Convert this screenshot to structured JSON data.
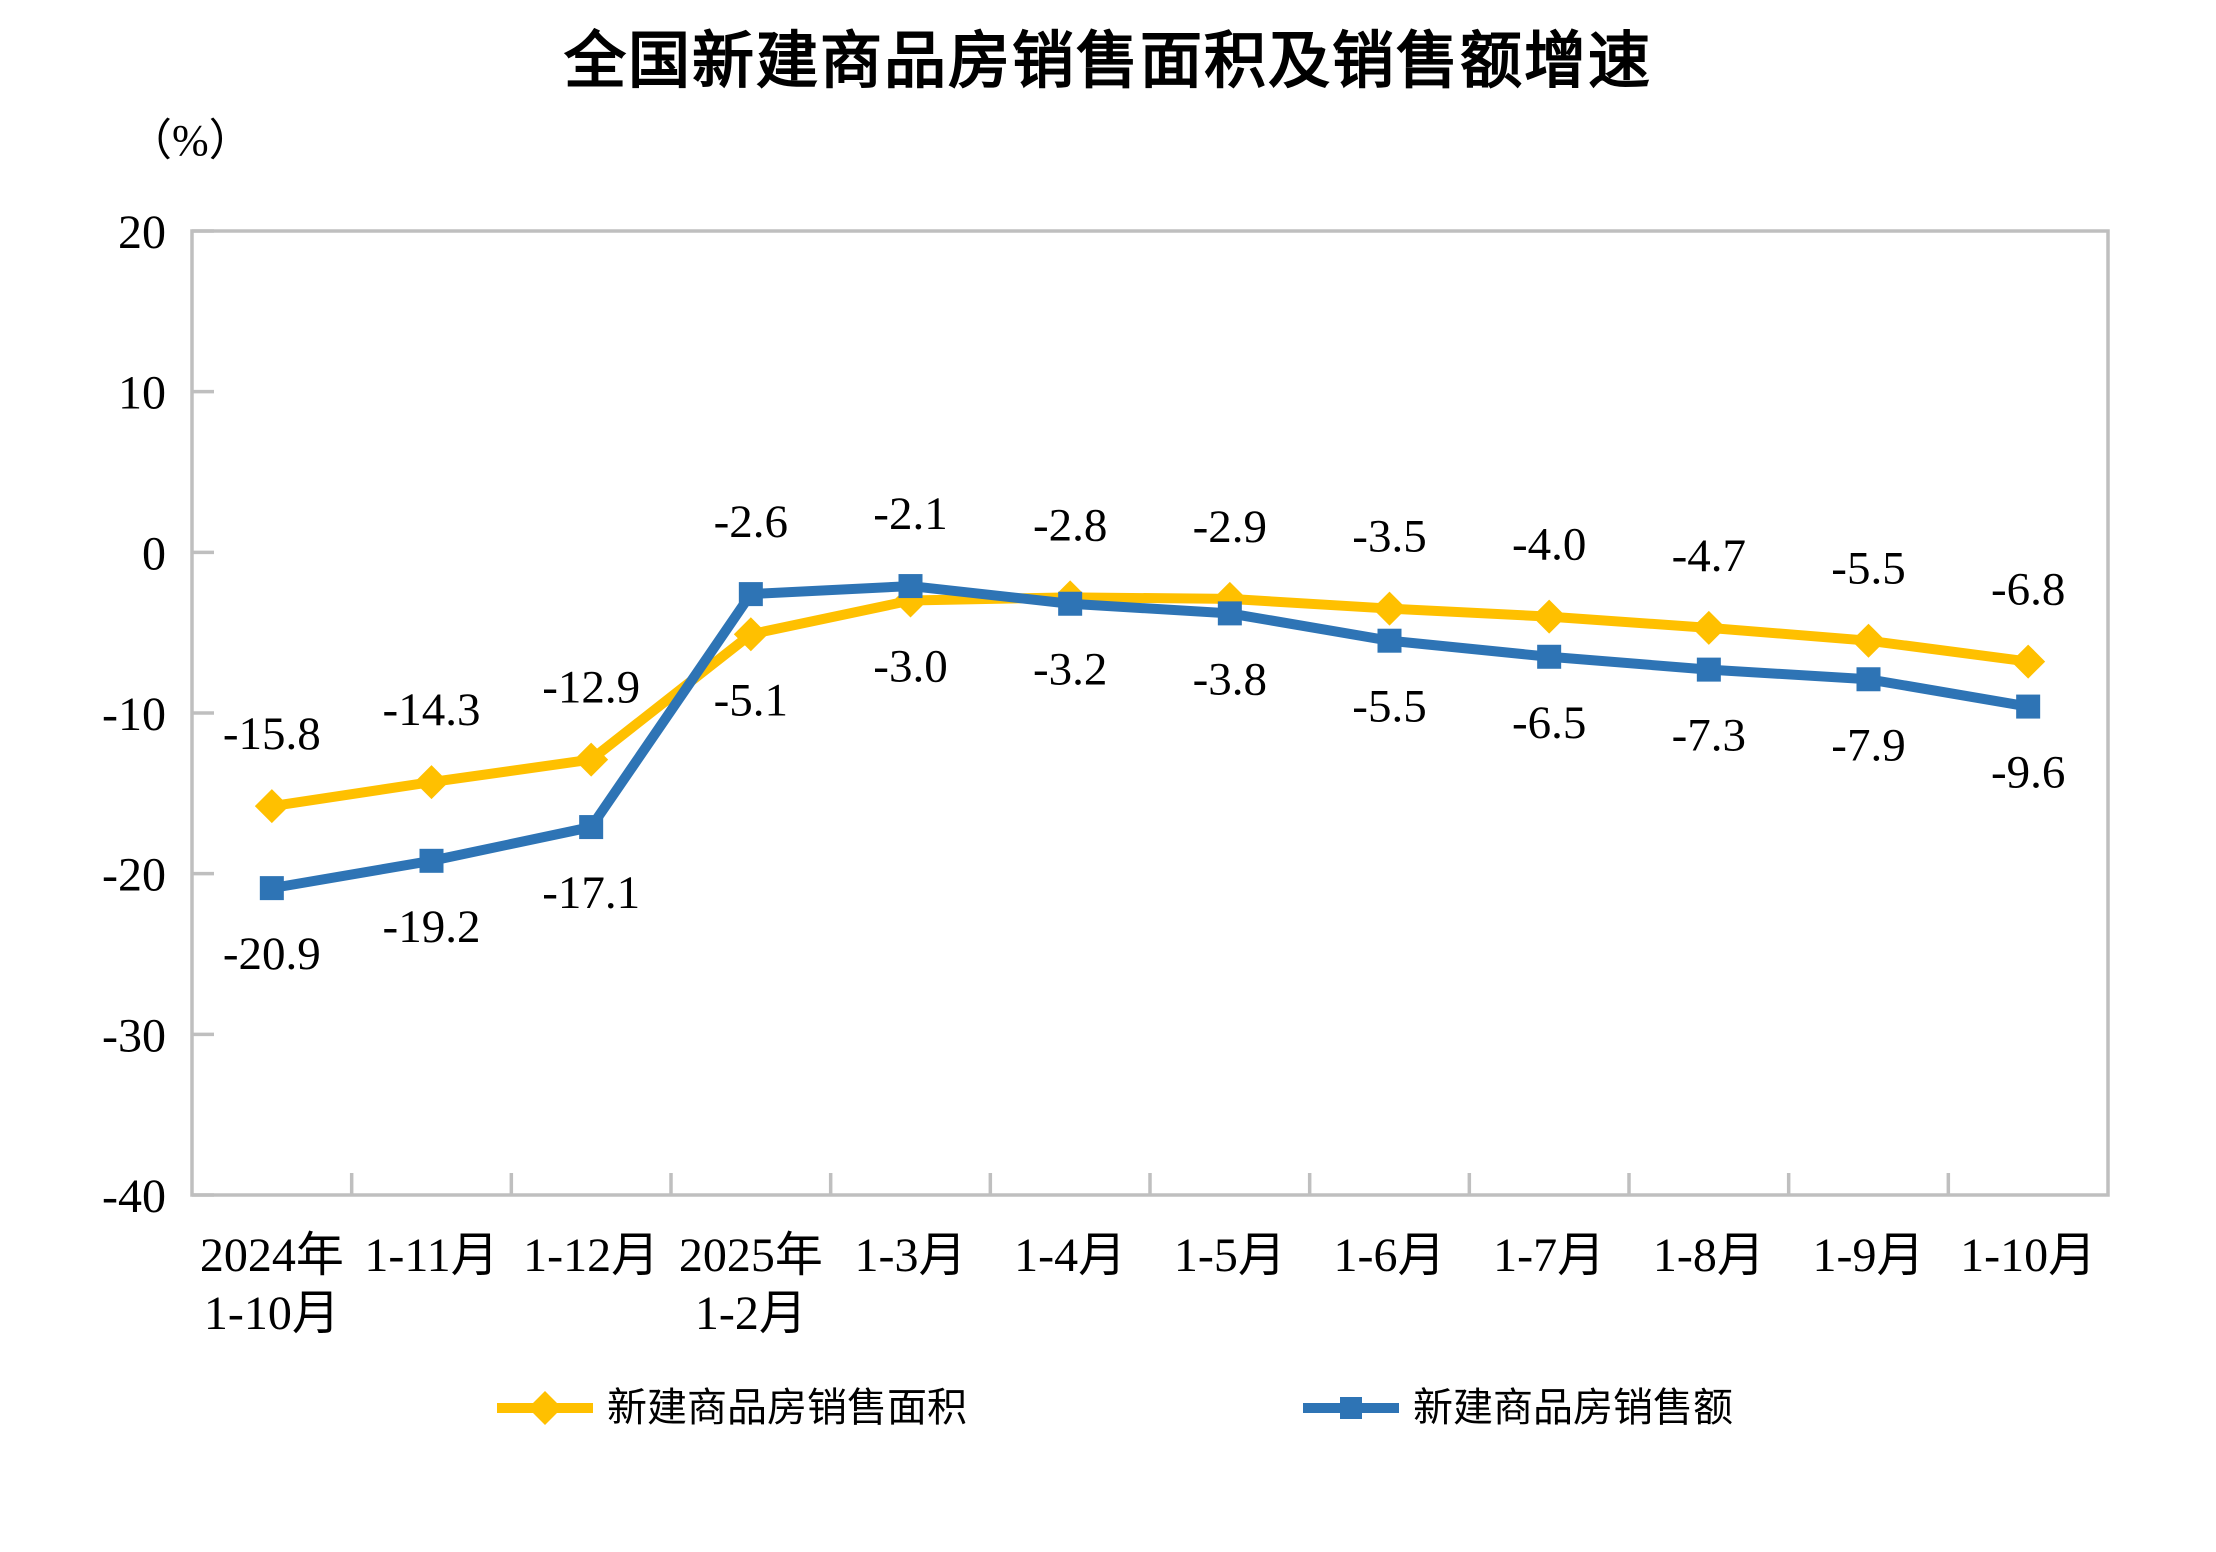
{
  "title": "全国新建商品房销售面积及销售额增速",
  "y_axis_unit": "（%）",
  "colors": {
    "series_area": "#FFC000",
    "series_amount": "#2E74B5",
    "axis": "#BFBFBF",
    "text": "#000000",
    "background": "#FFFFFF"
  },
  "legend": {
    "items": [
      {
        "label": "新建商品房销售面积",
        "marker": "diamond",
        "color": "#FFC000"
      },
      {
        "label": "新建商品房销售额",
        "marker": "square",
        "color": "#2E74B5"
      }
    ],
    "position": "bottom"
  },
  "chart_data": {
    "type": "line",
    "title": "全国新建商品房销售面积及销售额增速",
    "ylabel": "（%）",
    "categories": [
      "2024年\n1-10月",
      "1-11月",
      "1-12月",
      "2025年\n1-2月",
      "1-3月",
      "1-4月",
      "1-5月",
      "1-6月",
      "1-7月",
      "1-8月",
      "1-9月",
      "1-10月"
    ],
    "series": [
      {
        "name": "新建商品房销售面积",
        "marker": "diamond",
        "color": "#FFC000",
        "values": [
          -15.8,
          -14.3,
          -12.9,
          -5.1,
          -3.0,
          -2.8,
          -2.9,
          -3.5,
          -4.0,
          -4.7,
          -5.5,
          -6.8
        ]
      },
      {
        "name": "新建商品房销售额",
        "marker": "square",
        "color": "#2E74B5",
        "values": [
          -20.9,
          -19.2,
          -17.1,
          -2.6,
          -2.1,
          -3.2,
          -3.8,
          -5.5,
          -6.5,
          -7.3,
          -7.9,
          -9.6
        ]
      }
    ],
    "ylim": [
      -40,
      20
    ],
    "yticks": [
      20,
      10,
      0,
      -10,
      -20,
      -30,
      -40
    ],
    "grid": false,
    "data_labels": true,
    "legend_position": "bottom"
  }
}
